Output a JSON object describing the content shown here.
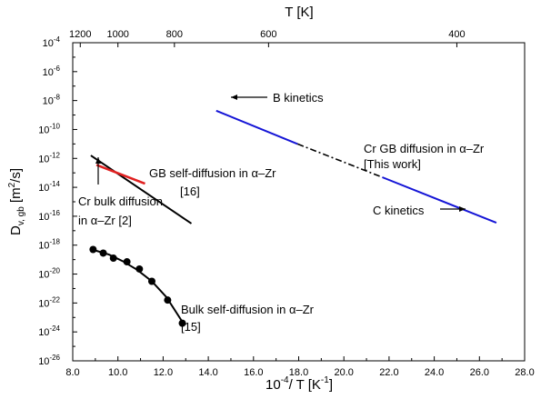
{
  "chart_data": {
    "type": "line",
    "xlabel": {
      "pre": "10",
      "sup": "-4",
      "post": "/ T [K",
      "sup2": "-1",
      "post2": "]"
    },
    "ylabel": {
      "pre": "D",
      "sub": "v, gb",
      "mid": " [m",
      "sup": "2",
      "post": "/s]"
    },
    "top_axis_title": "T [K]",
    "xlim": [
      8.0,
      28.0
    ],
    "ylog_exponent_range": [
      -26,
      -4
    ],
    "x_tick_labels": [
      "8.0",
      "10.0",
      "12.0",
      "14.0",
      "16.0",
      "18.0",
      "20.0",
      "22.0",
      "24.0",
      "26.0",
      "28.0"
    ],
    "x_ticks": [
      8,
      10,
      12,
      14,
      16,
      18,
      20,
      22,
      24,
      26,
      28
    ],
    "y_tick_exponents": [
      -4,
      -6,
      -8,
      -10,
      -12,
      -14,
      -16,
      -18,
      -20,
      -22,
      -24,
      -26
    ],
    "y_tick_base": "10",
    "top_ticks": [
      {
        "label": "1200",
        "T": 1200
      },
      {
        "label": "1000",
        "T": 1000
      },
      {
        "label": "800",
        "T": 800
      },
      {
        "label": "600",
        "T": 600
      },
      {
        "label": "400",
        "T": 400
      }
    ],
    "series": [
      {
        "name": "Cr GB diffusion in α–Zr [This work] (B kinetics)",
        "color": "#1515d6",
        "style": "solid",
        "x": [
          14.35,
          17.95
        ],
        "log10_y": [
          -8.7,
          -11.0
        ]
      },
      {
        "name": "Cr GB diffusion in α–Zr [This work] (transition)",
        "color": "#000000",
        "style": "dashdot",
        "x": [
          17.95,
          21.7
        ],
        "log10_y": [
          -11.0,
          -13.3
        ]
      },
      {
        "name": "Cr GB diffusion in α–Zr [This work] (C kinetics)",
        "color": "#1515d6",
        "style": "solid",
        "x": [
          21.7,
          26.75
        ],
        "log10_y": [
          -13.3,
          -16.45
        ]
      },
      {
        "name": "GB self-diffusion in α–Zr [16]",
        "color": "#000000",
        "style": "solid",
        "x": [
          8.8,
          13.25
        ],
        "log10_y": [
          -11.8,
          -16.5
        ]
      },
      {
        "name": "Cr bulk diffusion in α–Zr [2]",
        "color": "#e02020",
        "style": "solid",
        "x": [
          9.05,
          11.2
        ],
        "log10_y": [
          -12.45,
          -13.75
        ]
      },
      {
        "name": "Bulk self-diffusion in α–Zr [15]",
        "color": "#000000",
        "style": "solid",
        "x": [
          8.85,
          9.6,
          10.2,
          10.85,
          11.5,
          12.15,
          12.85
        ],
        "log10_y": [
          -18.3,
          -18.65,
          -19.1,
          -19.7,
          -20.5,
          -21.6,
          -23.3
        ]
      },
      {
        "name": "Bulk self-diffusion in α–Zr [15] (data points)",
        "color": "#000000",
        "style": "markers",
        "x": [
          8.9,
          9.35,
          9.8,
          10.4,
          10.95,
          11.5,
          12.2,
          12.85
        ],
        "log10_y": [
          -18.3,
          -18.55,
          -18.9,
          -19.15,
          -19.65,
          -20.5,
          -21.8,
          -23.4
        ]
      }
    ],
    "annotations": {
      "b_kinetics": "B kinetics",
      "c_kinetics": "C kinetics",
      "cr_gb_line1": "Cr GB diffusion in α–Zr",
      "cr_gb_line2": "[This work]",
      "gb_self_line1": "GB self-diffusion in α–Zr",
      "gb_self_line2": "[16]",
      "cr_bulk_line1": "Cr bulk diffusion",
      "cr_bulk_line2": "in α–Zr   [2]",
      "bulk_self_line1": "Bulk self-diffusion in α–Zr",
      "bulk_self_line2": "[15]"
    }
  }
}
